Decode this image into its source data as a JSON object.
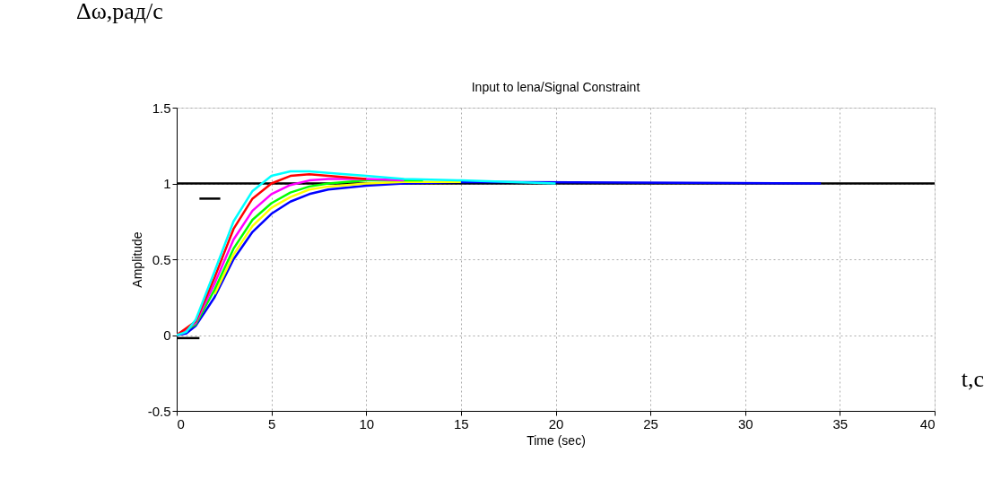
{
  "chart_data": {
    "type": "line",
    "title": "Input to lena/Signal Constraint",
    "xlabel": "Time (sec)",
    "ylabel": "Amplitude",
    "annotations": [
      "Δω,рад/с",
      "t,с"
    ],
    "xlim": [
      0,
      40
    ],
    "ylim": [
      -0.5,
      1.5
    ],
    "xticks": [
      0,
      5,
      10,
      15,
      20,
      25,
      30,
      35,
      40
    ],
    "yticks": [
      -0.5,
      0,
      0.5,
      1,
      1.5
    ],
    "grid": true,
    "legend": false,
    "line_style": "solid",
    "marker": "none",
    "series": [
      {
        "color": "#000000",
        "x": [
          0,
          40
        ],
        "values": [
          1,
          1
        ]
      },
      {
        "color": "#000000",
        "x": [
          0,
          1.2
        ],
        "values": [
          -0.02,
          -0.02
        ]
      },
      {
        "color": "#000000",
        "x": [
          1.2,
          2.3
        ],
        "values": [
          0.9,
          0.9
        ]
      },
      {
        "color": "#0000ff",
        "x": [
          0,
          0.5,
          1,
          2,
          3,
          4,
          5,
          6,
          7,
          8,
          10,
          12,
          15,
          34
        ],
        "values": [
          0,
          0.01,
          0.06,
          0.25,
          0.5,
          0.68,
          0.8,
          0.88,
          0.93,
          0.96,
          0.985,
          1.0,
          1.01,
          1.0
        ]
      },
      {
        "color": "#ffff00",
        "x": [
          2,
          3,
          4,
          5,
          6,
          7,
          8,
          10,
          12,
          15
        ],
        "values": [
          0.27,
          0.53,
          0.72,
          0.84,
          0.91,
          0.96,
          0.98,
          1.0,
          1.01,
          1.01
        ]
      },
      {
        "color": "#00ff00",
        "x": [
          0,
          1,
          2,
          3,
          4,
          5,
          6,
          7,
          8,
          10,
          13
        ],
        "values": [
          0,
          0.07,
          0.3,
          0.57,
          0.76,
          0.87,
          0.94,
          0.98,
          1.0,
          1.02,
          1.02
        ]
      },
      {
        "color": "#ff00ff",
        "x": [
          0,
          1,
          2,
          3,
          4,
          5,
          6,
          7,
          8,
          10,
          12
        ],
        "values": [
          0,
          0.08,
          0.34,
          0.63,
          0.82,
          0.93,
          0.99,
          1.02,
          1.03,
          1.03,
          1.02
        ]
      },
      {
        "color": "#ff0000",
        "x": [
          0,
          1,
          2,
          3,
          4,
          5,
          6,
          7,
          8,
          10
        ],
        "values": [
          0,
          0.09,
          0.38,
          0.7,
          0.9,
          1.0,
          1.05,
          1.06,
          1.05,
          1.03
        ]
      },
      {
        "color": "#00ffff",
        "x": [
          0,
          0.5,
          1,
          2,
          3,
          4,
          5,
          6,
          7,
          8,
          10,
          12,
          15,
          20
        ],
        "values": [
          0,
          0.02,
          0.1,
          0.42,
          0.75,
          0.95,
          1.05,
          1.08,
          1.08,
          1.07,
          1.05,
          1.03,
          1.02,
          1.0
        ]
      }
    ]
  }
}
